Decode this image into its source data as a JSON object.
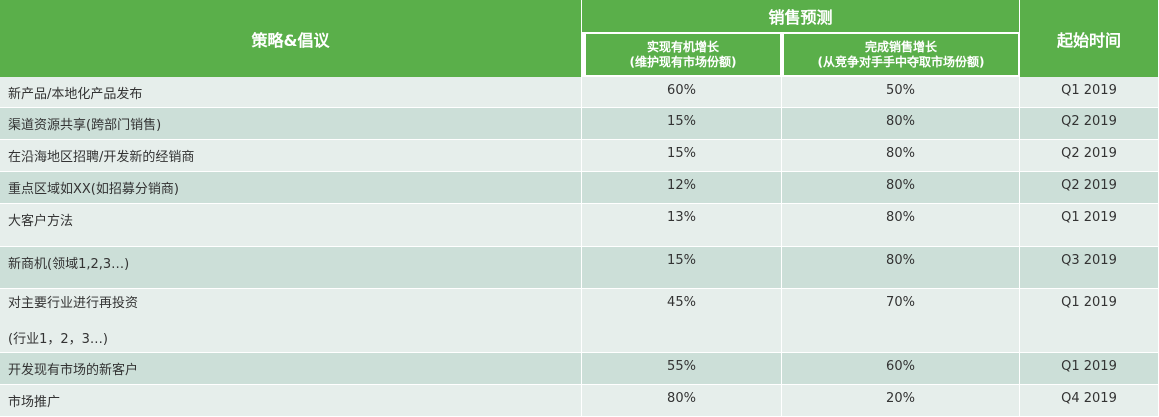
{
  "header": {
    "strategy": "策略&倡议",
    "forecast": "销售预测",
    "forecast_columns": [
      [
        "实现有机增长",
        "(维护现有市场份额)"
      ],
      [
        "完成销售增长",
        "(从竞争对手手中夺取市场份额)"
      ]
    ],
    "start_time": "起始时间"
  },
  "table": {
    "rows": [
      [
        "新产品/本地化产品发布",
        "60%",
        "50%",
        "Q1 2019"
      ],
      [
        "渠道资源共享(跨部门销售)",
        "15%",
        "80%",
        "Q2 2019"
      ],
      [
        "在沿海地区招聘/开发新的经销商",
        "15%",
        "80%",
        "Q2 2019"
      ],
      [
        "重点区域如XX(如招募分销商)",
        "12%",
        "80%",
        "Q2 2019"
      ],
      [
        "大客户方法",
        "13%",
        "80%",
        "Q1 2019"
      ],
      [
        "新商机(领域1,2,3…)",
        "15%",
        "80%",
        "Q3 2019"
      ],
      [
        [
          "对主要行业进行再投资",
          "(行业1，2，3…)"
        ],
        "45%",
        "70%",
        "Q1 2019"
      ],
      [
        "开发现有市场的新客户",
        "55%",
        "60%",
        "Q1 2019"
      ],
      [
        "市场推广",
        "80%",
        "20%",
        "Q4 2019"
      ]
    ]
  }
}
